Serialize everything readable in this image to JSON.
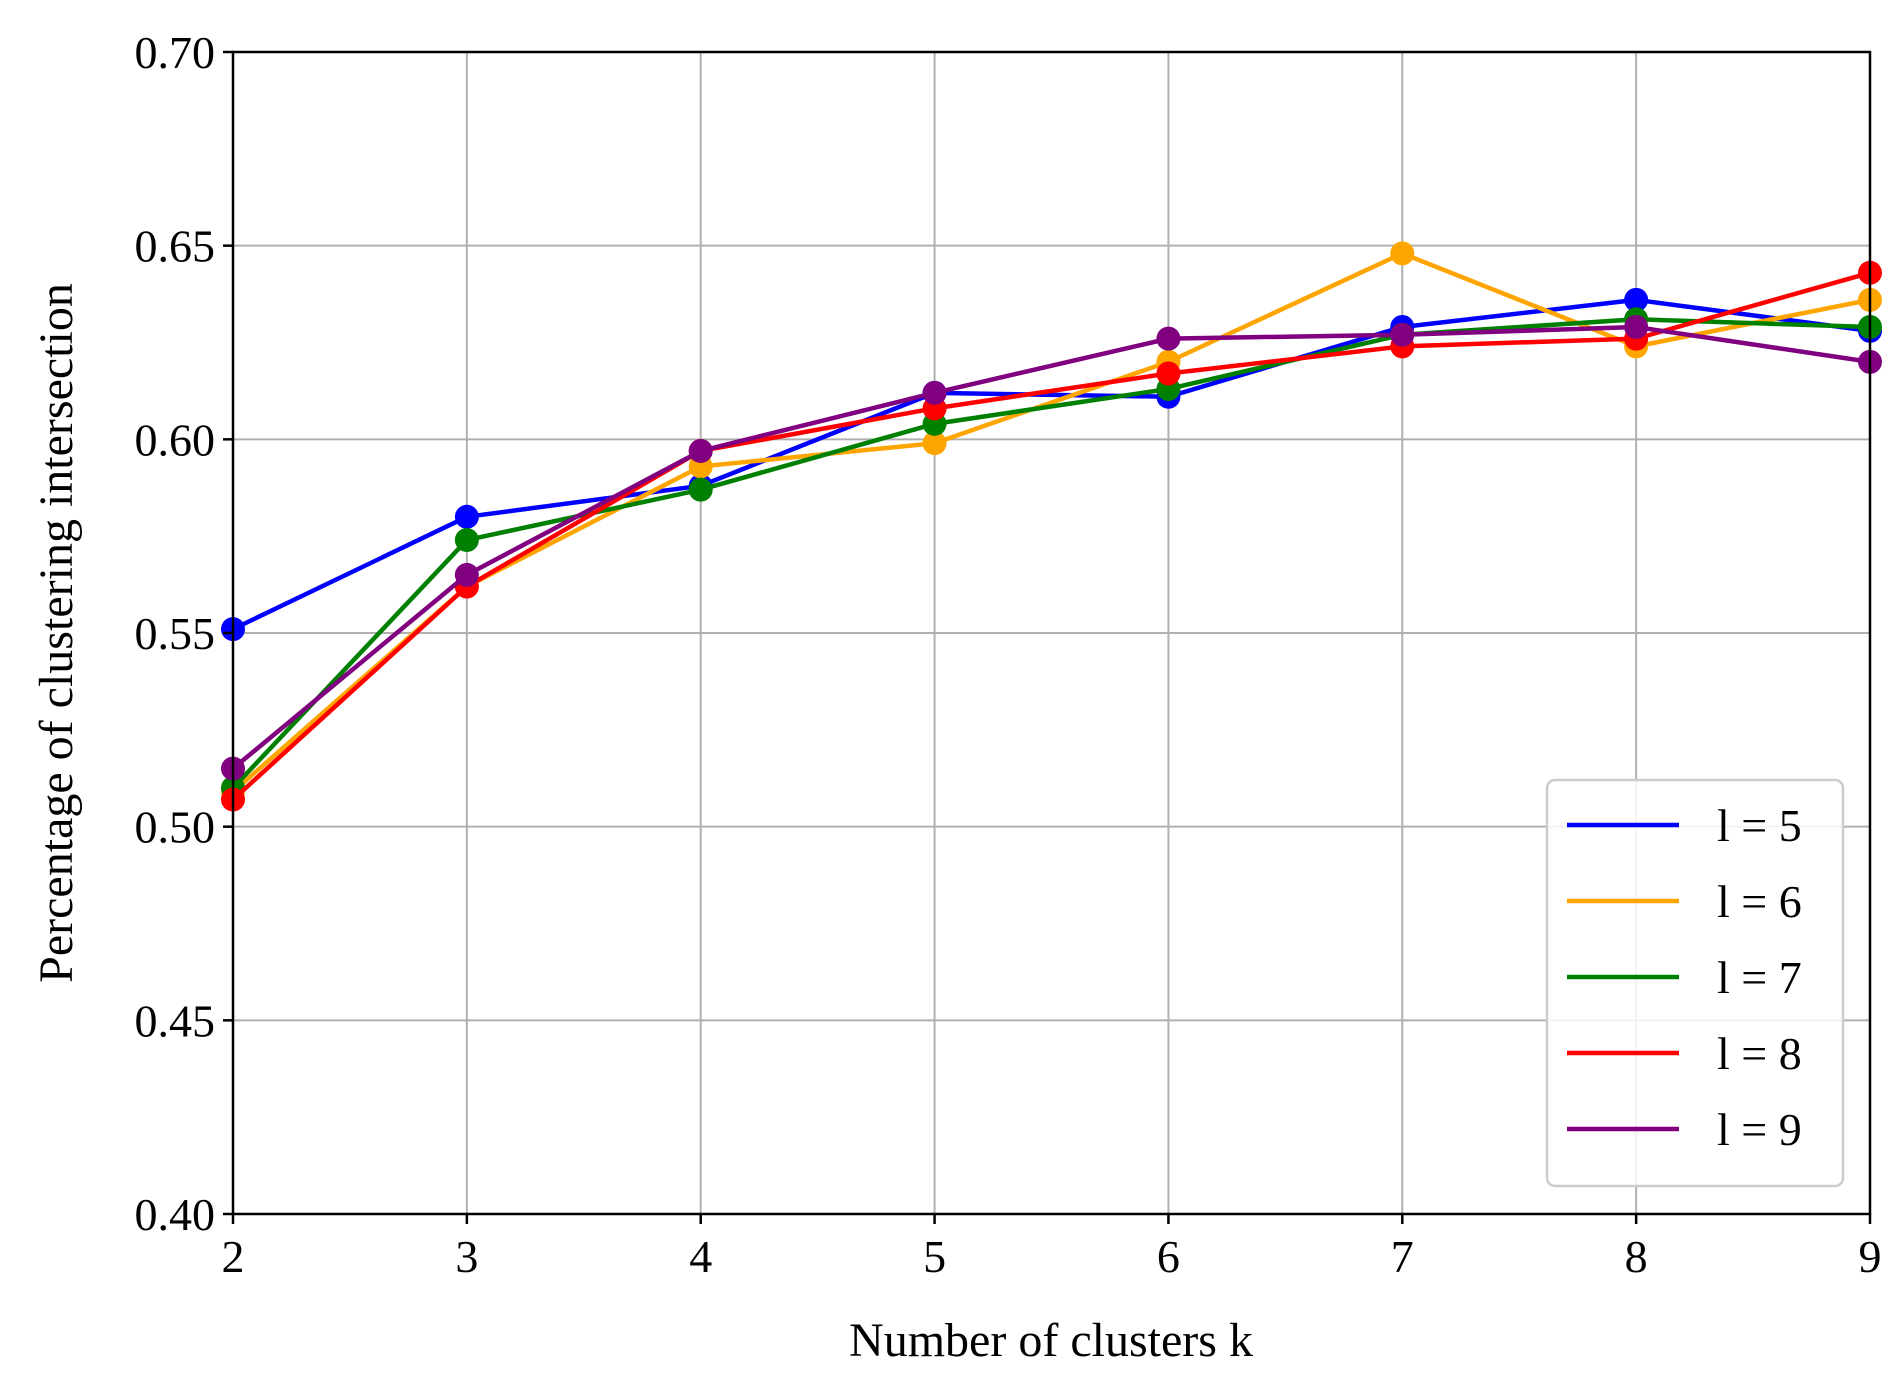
{
  "chart_data": {
    "type": "line",
    "xlabel": "Number of clusters k",
    "ylabel": "Percentage of clustering intersection",
    "xlim": [
      2,
      9
    ],
    "ylim": [
      0.4,
      0.7
    ],
    "xticks": [
      "2",
      "3",
      "4",
      "5",
      "6",
      "7",
      "8",
      "9"
    ],
    "yticks": [
      "0.40",
      "0.45",
      "0.50",
      "0.55",
      "0.60",
      "0.65",
      "0.70"
    ],
    "grid": true,
    "legend_position": "lower-right",
    "x": [
      2,
      3,
      4,
      5,
      6,
      7,
      8,
      9
    ],
    "series": [
      {
        "name": "l = 5",
        "color": "#0000ff",
        "values": [
          0.551,
          0.58,
          0.588,
          0.612,
          0.611,
          0.629,
          0.636,
          0.628
        ]
      },
      {
        "name": "l = 6",
        "color": "#ffa500",
        "values": [
          0.509,
          0.562,
          0.593,
          0.599,
          0.62,
          0.648,
          0.624,
          0.636
        ]
      },
      {
        "name": "l = 7",
        "color": "#008000",
        "values": [
          0.51,
          0.574,
          0.587,
          0.604,
          0.613,
          0.627,
          0.631,
          0.629
        ]
      },
      {
        "name": "l = 8",
        "color": "#ff0000",
        "values": [
          0.507,
          0.562,
          0.597,
          0.608,
          0.617,
          0.624,
          0.626,
          0.643
        ]
      },
      {
        "name": "l = 9",
        "color": "#800080",
        "values": [
          0.515,
          0.565,
          0.597,
          0.612,
          0.626,
          0.627,
          0.629,
          0.62
        ]
      }
    ]
  }
}
